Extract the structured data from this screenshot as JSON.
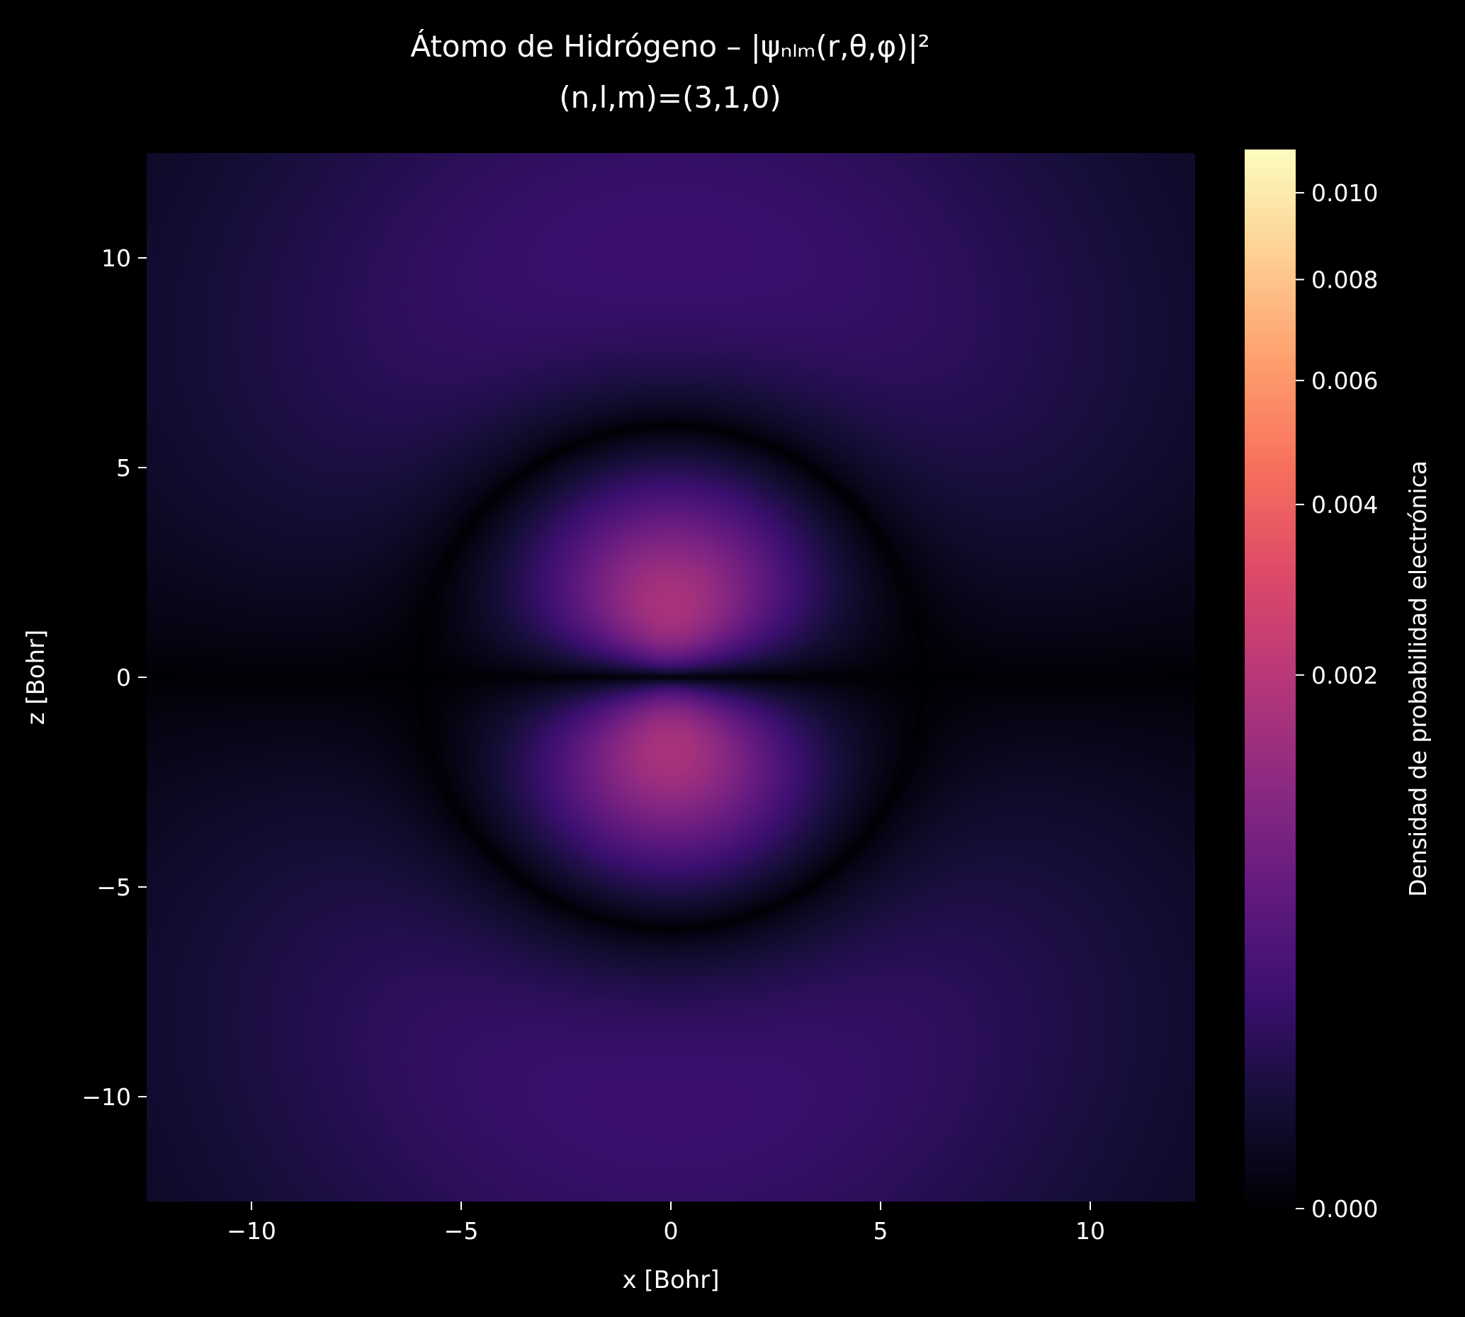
{
  "chart_data": {
    "type": "heatmap",
    "title": "Átomo de Hidrógeno – |ψₙₗₘ(r,θ,φ)|²",
    "subtitle": "(n,l,m)=(3,1,0)",
    "xlabel": "x [Bohr]",
    "ylabel": "z [Bohr]",
    "xlim": [
      -12.5,
      12.5
    ],
    "ylim": [
      -12.5,
      12.5
    ],
    "x_ticks": [
      -10,
      -5,
      0,
      5,
      10
    ],
    "y_ticks": [
      -10,
      -5,
      0,
      5,
      10
    ],
    "x_tick_labels": [
      "−10",
      "−5",
      "0",
      "5",
      "10"
    ],
    "y_tick_labels": [
      "−10",
      "−5",
      "0",
      "5",
      "10"
    ],
    "grid": false,
    "orbital": {
      "n": 3,
      "l": 1,
      "m": 0
    },
    "function": "|psi_310(x,z)|^2, hydrogen, Bohr units",
    "colormap": "magma",
    "norm": "power",
    "norm_gamma": 0.4,
    "vmin": 0.0,
    "vmax": 0.0111,
    "colorbar": {
      "label": "Densidad de probabilidad electrónica",
      "ticks": [
        0.0,
        0.002,
        0.004,
        0.006,
        0.008,
        0.01
      ],
      "tick_labels": [
        "0.000",
        "0.002",
        "0.004",
        "0.006",
        "0.008",
        "0.010"
      ]
    },
    "background_color": "#000000",
    "text_color": "#ffffff"
  }
}
